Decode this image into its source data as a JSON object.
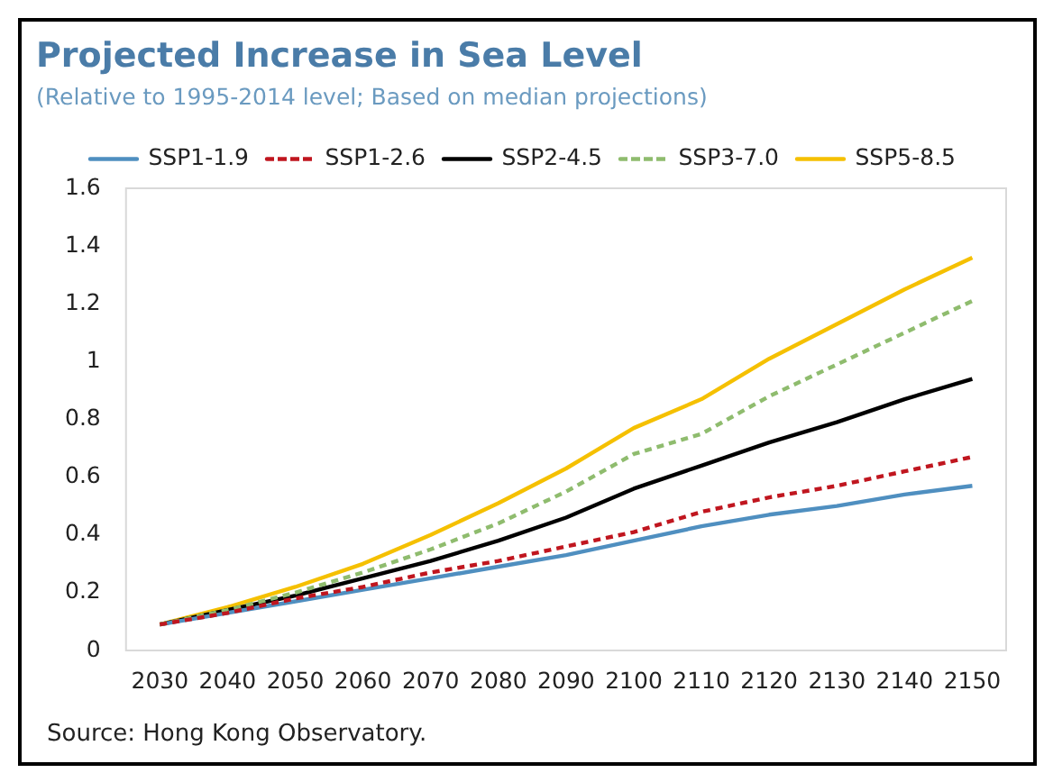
{
  "chart_data": {
    "type": "line",
    "title": "Projected Increase in Sea Level",
    "subtitle": "(Relative to 1995-2014 level; Based on median projections)",
    "categories": [
      "2030",
      "2040",
      "2050",
      "2060",
      "2070",
      "2080",
      "2090",
      "2100",
      "2110",
      "2120",
      "2130",
      "2140",
      "2150"
    ],
    "series": [
      {
        "name": "SSP1-1.9",
        "color": "#4f8fc0",
        "line_style": "solid",
        "values": [
          0.09,
          0.13,
          0.17,
          0.21,
          0.25,
          0.29,
          0.33,
          0.38,
          0.43,
          0.47,
          0.5,
          0.54,
          0.57
        ]
      },
      {
        "name": "SSP1-2.6",
        "color": "#c0161f",
        "line_style": "dashed",
        "values": [
          0.09,
          0.13,
          0.18,
          0.22,
          0.27,
          0.31,
          0.36,
          0.41,
          0.48,
          0.53,
          0.57,
          0.62,
          0.67
        ]
      },
      {
        "name": "SSP2-4.5",
        "color": "#000000",
        "line_style": "solid",
        "values": [
          0.09,
          0.14,
          0.19,
          0.25,
          0.31,
          0.38,
          0.46,
          0.56,
          0.64,
          0.72,
          0.79,
          0.87,
          0.94
        ]
      },
      {
        "name": "SSP3-7.0",
        "color": "#8fbc6e",
        "line_style": "dashed",
        "values": [
          0.09,
          0.14,
          0.2,
          0.27,
          0.35,
          0.44,
          0.55,
          0.68,
          0.75,
          0.88,
          0.99,
          1.1,
          1.21
        ]
      },
      {
        "name": "SSP5-8.5",
        "color": "#f5c000",
        "line_style": "solid",
        "values": [
          0.09,
          0.15,
          0.22,
          0.3,
          0.4,
          0.51,
          0.63,
          0.77,
          0.87,
          1.01,
          1.13,
          1.25,
          1.36
        ]
      }
    ],
    "ylim": [
      0,
      1.6
    ],
    "yticks": [
      0,
      0.2,
      0.4,
      0.6,
      0.8,
      1,
      1.2,
      1.4,
      1.6
    ],
    "grid": false,
    "legend": "top",
    "marker": "none",
    "annotations": [
      "Source: Hong Kong Observatory."
    ]
  }
}
